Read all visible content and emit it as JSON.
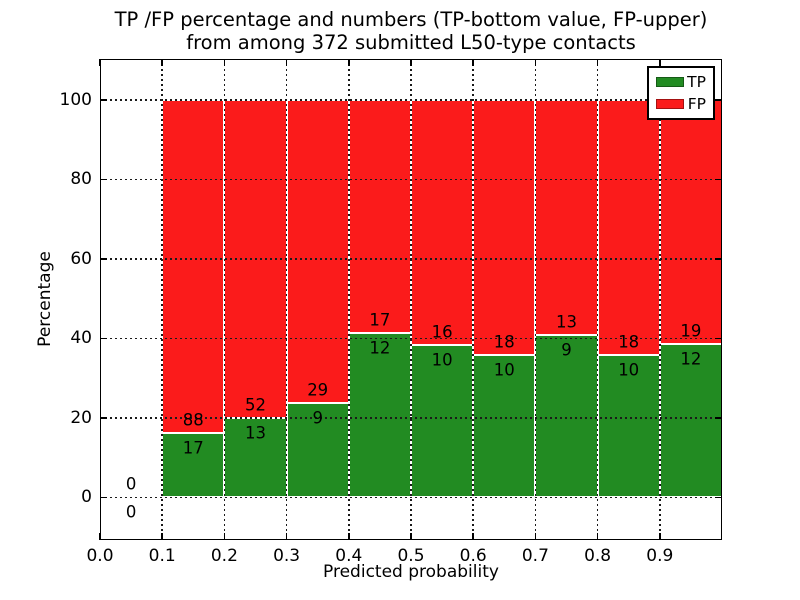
{
  "figure": {
    "title_line1": "TP /FP percentage and numbers (TP-bottom value, FP-upper)",
    "title_line2": "from among 372 submitted L50-type contacts",
    "background": "#ffffff"
  },
  "axes": {
    "xlabel": "Predicted probability",
    "ylabel": "Percentage"
  },
  "legend": {
    "position": "upper right",
    "items": [
      {
        "label": "TP",
        "color": "#228b22"
      },
      {
        "label": "FP",
        "color": "#fb1b1b"
      }
    ]
  },
  "chart_data": {
    "type": "bar",
    "stacked": true,
    "title": "TP /FP percentage and numbers (TP-bottom value, FP-upper) from among 372 submitted L50-type contacts",
    "xlabel": "Predicted probability",
    "ylabel": "Percentage",
    "xlim": [
      0.0,
      1.0
    ],
    "ylim": [
      -10.7,
      110.3
    ],
    "x_ticks": [
      "0.0",
      "0.1",
      "0.2",
      "0.3",
      "0.4",
      "0.5",
      "0.6",
      "0.7",
      "0.8",
      "0.9"
    ],
    "y_ticks": [
      0,
      20,
      40,
      60,
      80,
      100
    ],
    "grid": true,
    "grid_style": "dotted",
    "bin_width": 0.1,
    "total_contacts": 372,
    "series": [
      {
        "name": "TP",
        "color": "#228b22",
        "counts": [
          0,
          17,
          13,
          9,
          12,
          10,
          10,
          9,
          10,
          12
        ]
      },
      {
        "name": "FP",
        "color": "#fb1b1b",
        "counts": [
          0,
          88,
          52,
          29,
          17,
          16,
          18,
          13,
          18,
          19
        ]
      }
    ],
    "bins": [
      {
        "x_start": 0.0,
        "x_end": 0.1,
        "tp": 0,
        "fp": 0,
        "tp_pct": null,
        "fp_pct": null
      },
      {
        "x_start": 0.1,
        "x_end": 0.2,
        "tp": 17,
        "fp": 88,
        "tp_pct": 16.2,
        "fp_pct": 83.8
      },
      {
        "x_start": 0.2,
        "x_end": 0.3,
        "tp": 13,
        "fp": 52,
        "tp_pct": 20.0,
        "fp_pct": 80.0
      },
      {
        "x_start": 0.3,
        "x_end": 0.4,
        "tp": 9,
        "fp": 29,
        "tp_pct": 23.7,
        "fp_pct": 76.3
      },
      {
        "x_start": 0.4,
        "x_end": 0.5,
        "tp": 12,
        "fp": 17,
        "tp_pct": 41.4,
        "fp_pct": 58.6
      },
      {
        "x_start": 0.5,
        "x_end": 0.6,
        "tp": 10,
        "fp": 16,
        "tp_pct": 38.5,
        "fp_pct": 61.5
      },
      {
        "x_start": 0.6,
        "x_end": 0.7,
        "tp": 10,
        "fp": 18,
        "tp_pct": 35.7,
        "fp_pct": 64.3
      },
      {
        "x_start": 0.7,
        "x_end": 0.8,
        "tp": 9,
        "fp": 13,
        "tp_pct": 40.9,
        "fp_pct": 59.1
      },
      {
        "x_start": 0.8,
        "x_end": 0.9,
        "tp": 10,
        "fp": 18,
        "tp_pct": 35.7,
        "fp_pct": 64.3
      },
      {
        "x_start": 0.9,
        "x_end": 1.0,
        "tp": 12,
        "fp": 19,
        "tp_pct": 38.7,
        "fp_pct": 61.3
      }
    ]
  }
}
